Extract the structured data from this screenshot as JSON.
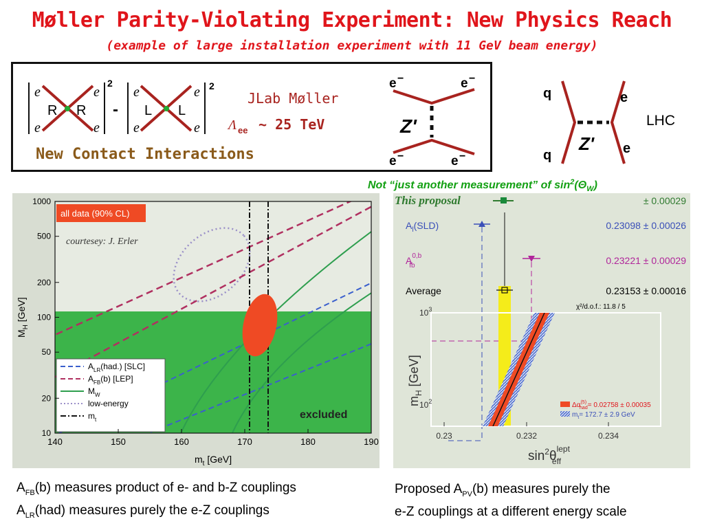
{
  "title": "Møller Parity-Violating Experiment: New Physics Reach",
  "subtitle": "(example of large installation experiment with 11 GeV beam energy)",
  "contact": {
    "e_label": "e",
    "chirality_r": "R",
    "chirality_l": "L",
    "squared": "2",
    "minus": "-",
    "jlab": "JLab Møller",
    "lambda": "Λ",
    "lambda_sub": "ee",
    "scale": "~ 25 TeV",
    "new_contact": "New Contact Interactions",
    "z_prime": "Z'",
    "e_minus": "e",
    "minus_sup": "−",
    "q_label": "q",
    "lhc": "LHC"
  },
  "not_just": {
    "text": "Not “just another measurement” of sin",
    "sup": "2",
    "paren": "(Θ",
    "sub": "W",
    "close": ")"
  },
  "left_plot": {
    "badge": "all data (90% CL)",
    "courtesy": "courtesey: J. Erler",
    "excluded": "excluded",
    "ylabel": "M",
    "ylabel_sub": "H",
    "ylabel_unit": " [GeV]",
    "xlabel": "m",
    "xlabel_sub": "t",
    "xlabel_unit": " [GeV]",
    "xticks": [
      "140",
      "150",
      "160",
      "170",
      "180",
      "190"
    ],
    "yticks": [
      "1000",
      "500",
      "200",
      "100",
      "50",
      "20",
      "10"
    ],
    "legend": [
      {
        "main": "A",
        "sub": "LR",
        "rest": "(had.) [SLC]",
        "color": "#3a5fcd",
        "style": "dash"
      },
      {
        "main": "A",
        "sub": "FB",
        "rest": "(b) [LEP]",
        "color": "#b03060",
        "style": "dash"
      },
      {
        "main": "M",
        "sub": "W",
        "rest": "",
        "color": "#2e9e4e",
        "style": "solid"
      },
      {
        "main": "low-energy",
        "sub": "",
        "rest": "",
        "color": "#9a8fc8",
        "style": "dot"
      },
      {
        "main": "m",
        "sub": "t",
        "rest": "",
        "color": "#111111",
        "style": "dashdot"
      }
    ]
  },
  "right_plot": {
    "this_proposal": "This proposal",
    "this_value": "± 0.00029",
    "rows": [
      {
        "label_main": "A",
        "label_sub": "l",
        "label_rest": "(SLD)",
        "value": "0.23098 ± 0.00026",
        "color": "#3a4fb8"
      },
      {
        "label_main": "A",
        "label_sub": "fb",
        "label_sup": "0,b",
        "label_rest": "",
        "value": "0.23221 ± 0.00029",
        "color": "#b0259a"
      },
      {
        "label_main": "Average",
        "label_sub": "",
        "label_rest": "",
        "value": "0.23153 ± 0.00016",
        "color": "#000000"
      }
    ],
    "chi2": "χ²/d.o.f.: 11.8 / 5",
    "ytick_1000": "10",
    "ytick_1000_sup": "3",
    "ytick_100": "10",
    "ytick_100_sup": "2",
    "ylabel": "m",
    "ylabel_sub": "H",
    "ylabel_unit": "  [GeV]",
    "xticks": [
      "0.23",
      "0.232",
      "0.234"
    ],
    "xlabel": "sin",
    "xlabel_sup": "2",
    "xlabel_theta": "θ",
    "xlabel_eff_sup": "lept",
    "xlabel_eff_sub": "eff",
    "legend1_pre": "Δα",
    "legend1_sup": "(5)",
    "legend1_sub": "had",
    "legend1_val": "= 0.02758 ± 0.00035",
    "legend2_pre": "m",
    "legend2_sub": "t",
    "legend2_val": "= 172.7 ± 2.9 GeV"
  },
  "caption_left": {
    "l1_a": "A",
    "l1_sub": "FB",
    "l1_b": "(b) measures product of e- and b-Z couplings",
    "l2_a": "A",
    "l2_sub": "LR",
    "l2_b": "(had) measures purely the e-Z couplings"
  },
  "caption_right": {
    "l1_a": "Proposed A",
    "l1_sub": "PV",
    "l1_b": "(b) measures purely the",
    "l2": "e-Z couplings at a different energy scale"
  },
  "colors": {
    "title_red": "#e0151b",
    "dark_red": "#a8231f",
    "olive_brown": "#8a5a1a",
    "green_text": "#12a012",
    "excluded_green": "#3cb44a",
    "ellipse": "#ef4a24",
    "yellow_band": "#f5ec1a"
  }
}
